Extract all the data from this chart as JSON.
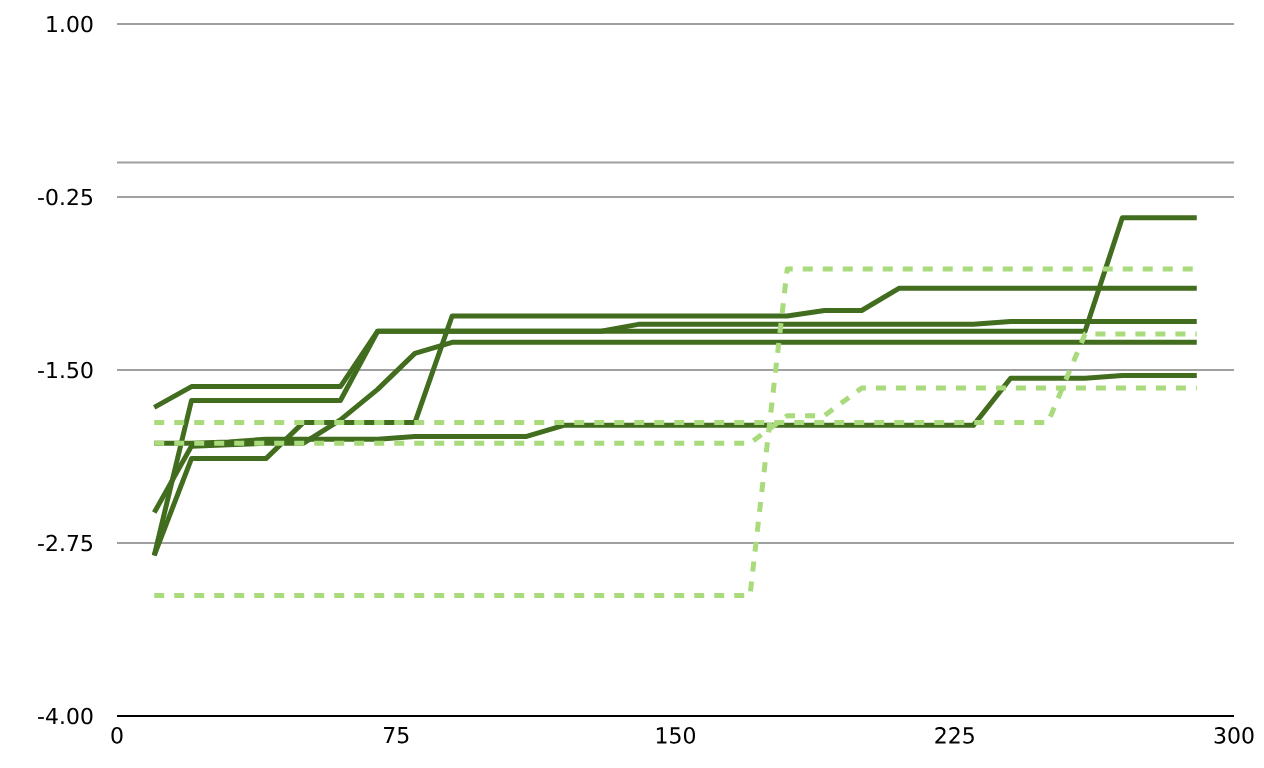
{
  "chart_data": {
    "type": "line",
    "x": [
      10,
      20,
      30,
      40,
      50,
      60,
      70,
      80,
      90,
      100,
      110,
      120,
      130,
      140,
      150,
      160,
      170,
      180,
      190,
      200,
      210,
      220,
      230,
      240,
      250,
      260,
      270,
      280,
      290
    ],
    "series": [
      {
        "color": "#426d1f",
        "line_style": "solid",
        "values": [
          -1.77,
          -1.62,
          -1.62,
          -1.62,
          -1.62,
          -1.62,
          -1.22,
          -1.22,
          -1.22,
          -1.22,
          -1.22,
          -1.22,
          -1.22,
          -1.17,
          -1.17,
          -1.17,
          -1.17,
          -1.17,
          -1.17,
          -1.17,
          -1.17,
          -1.17,
          -1.17,
          -1.15,
          -1.15,
          -1.15,
          -1.15,
          -1.15,
          -1.15
        ]
      },
      {
        "color": "#426d1f",
        "line_style": "solid",
        "values": [
          -2.84,
          -1.72,
          -1.72,
          -1.72,
          -1.72,
          -1.72,
          -1.22,
          -1.22,
          -1.22,
          -1.22,
          -1.22,
          -1.22,
          -1.22,
          -1.22,
          -1.22,
          -1.22,
          -1.22,
          -1.22,
          -1.22,
          -1.22,
          -1.22,
          -1.22,
          -1.22,
          -1.22,
          -1.22,
          -1.22,
          -0.4,
          -0.4,
          -0.4
        ]
      },
      {
        "color": "#426d1f",
        "line_style": "solid",
        "values": [
          -2.84,
          -2.14,
          -2.14,
          -2.14,
          -1.88,
          -1.88,
          -1.88,
          -1.88,
          -1.11,
          -1.11,
          -1.11,
          -1.11,
          -1.11,
          -1.11,
          -1.11,
          -1.11,
          -1.11,
          -1.11,
          -1.07,
          -1.07,
          -0.91,
          -0.91,
          -0.91,
          -0.91,
          -0.91,
          -0.91,
          -0.91,
          -0.91,
          -0.91
        ]
      },
      {
        "color": "#426d1f",
        "line_style": "solid",
        "values": [
          -2.53,
          -2.05,
          -2.04,
          -2.03,
          -2.03,
          -1.86,
          -1.64,
          -1.38,
          -1.3,
          -1.3,
          -1.3,
          -1.3,
          -1.3,
          -1.3,
          -1.3,
          -1.3,
          -1.3,
          -1.3,
          -1.3,
          -1.3,
          -1.3,
          -1.3,
          -1.3,
          -1.3,
          -1.3,
          -1.3,
          -1.3,
          -1.3,
          -1.3
        ]
      },
      {
        "color": "#426d1f",
        "line_style": "solid",
        "values": [
          -2.03,
          -2.03,
          -2.02,
          -2.0,
          -2.0,
          -2.0,
          -2.0,
          -1.98,
          -1.98,
          -1.98,
          -1.98,
          -1.9,
          -1.9,
          -1.9,
          -1.9,
          -1.9,
          -1.9,
          -1.9,
          -1.9,
          -1.9,
          -1.9,
          -1.9,
          -1.9,
          -1.56,
          -1.56,
          -1.56,
          -1.54,
          -1.54,
          -1.54
        ]
      },
      {
        "color": "#a9db7c",
        "line_style": "dashed",
        "values": [
          -1.88,
          -1.88,
          -1.88,
          -1.88,
          -1.88,
          -1.88,
          -1.88,
          -1.88,
          -1.88,
          -1.88,
          -1.88,
          -1.88,
          -1.88,
          -1.88,
          -1.88,
          -1.88,
          -1.88,
          -1.88,
          -1.88,
          -1.88,
          -1.88,
          -1.88,
          -1.88,
          -1.88,
          -1.88,
          -1.24,
          -1.24,
          -1.24,
          -1.24
        ]
      },
      {
        "color": "#a9db7c",
        "line_style": "dashed",
        "values": [
          -2.03,
          -2.03,
          -2.03,
          -2.03,
          -2.03,
          -2.03,
          -2.03,
          -2.03,
          -2.03,
          -2.03,
          -2.03,
          -2.03,
          -2.03,
          -2.03,
          -2.03,
          -2.03,
          -2.03,
          -1.83,
          -1.83,
          -1.63,
          -1.63,
          -1.63,
          -1.63,
          -1.63,
          -1.63,
          -1.63,
          -1.63,
          -1.63,
          -1.63
        ]
      },
      {
        "color": "#a9db7c",
        "line_style": "dashed",
        "values": [
          -3.13,
          -3.13,
          -3.13,
          -3.13,
          -3.13,
          -3.13,
          -3.13,
          -3.13,
          -3.13,
          -3.13,
          -3.13,
          -3.13,
          -3.13,
          -3.13,
          -3.13,
          -3.13,
          -3.13,
          -0.77,
          -0.77,
          -0.77,
          -0.77,
          -0.77,
          -0.77,
          -0.77,
          -0.77,
          -0.77,
          -0.77,
          -0.77,
          -0.77
        ]
      }
    ],
    "xlim": [
      0,
      300
    ],
    "xticks": [
      0,
      75,
      150,
      225,
      300
    ],
    "ylim": [
      -4,
      1
    ],
    "yticks": [
      {
        "value": -4,
        "label": "-4.00"
      },
      {
        "value": -2.75,
        "label": "-2.75"
      },
      {
        "value": -1.5,
        "label": "-1.50"
      },
      {
        "value": -0.25,
        "label": "-0.25"
      },
      {
        "value": 0,
        "label": null
      },
      {
        "value": 1,
        "label": "1.00"
      }
    ],
    "grid": "y"
  }
}
